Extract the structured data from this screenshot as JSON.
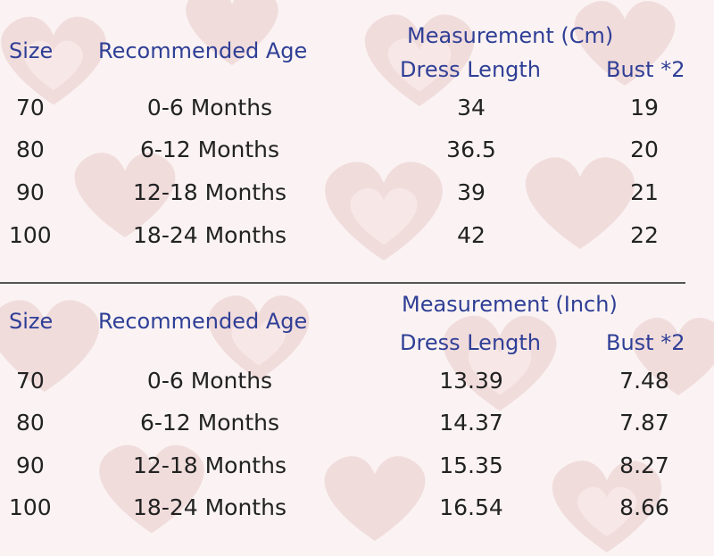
{
  "colors": {
    "header_text": "#2f3f96",
    "cell_text": "#222222",
    "background": "#fbf3f3",
    "divider": "#555555"
  },
  "tables": [
    {
      "group_header": "Measurement (Cm)",
      "columns": [
        "Size",
        "Recommended Age",
        "Dress Length",
        "Bust *2"
      ],
      "rows": [
        [
          "70",
          "0-6 Months",
          "34",
          "19"
        ],
        [
          "80",
          "6-12 Months",
          "36.5",
          "20"
        ],
        [
          "90",
          "12-18 Months",
          "39",
          "21"
        ],
        [
          "100",
          "18-24 Months",
          "42",
          "22"
        ]
      ]
    },
    {
      "group_header": "Measurement (Inch)",
      "columns": [
        "Size",
        "Recommended Age",
        "Dress Length",
        "Bust *2"
      ],
      "rows": [
        [
          "70",
          "0-6 Months",
          "13.39",
          "7.48"
        ],
        [
          "80",
          "6-12 Months",
          "14.37",
          "7.87"
        ],
        [
          "90",
          "12-18 Months",
          "15.35",
          "8.27"
        ],
        [
          "100",
          "18-24 Months",
          "16.54",
          "8.66"
        ]
      ]
    }
  ]
}
